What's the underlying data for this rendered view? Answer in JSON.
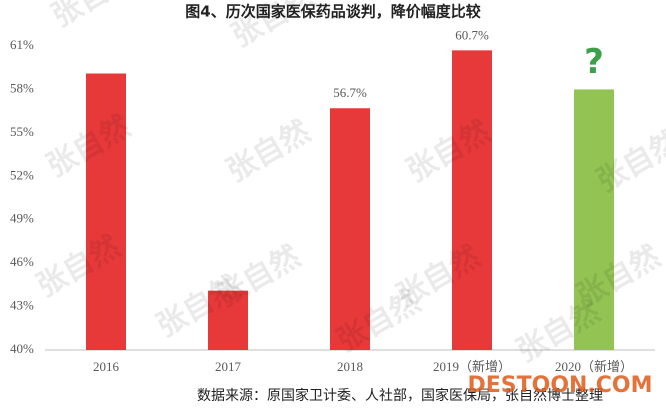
{
  "chart_data": {
    "type": "bar",
    "title": "图4、历次国家医保药品谈判，降价幅度比较",
    "categories": [
      "2016",
      "2017",
      "2018",
      "2019（新增）",
      "2020（新增）"
    ],
    "values": [
      59.1,
      44.1,
      56.7,
      60.7,
      58.0
    ],
    "value_labels": [
      null,
      null,
      "56.7%",
      "60.7%",
      null
    ],
    "colors": [
      "#e8393a",
      "#e8393a",
      "#e8393a",
      "#e8393a",
      "#92c353"
    ],
    "annotation": "?",
    "annotation_color": "#3aa14a",
    "ylim": [
      40,
      61
    ],
    "yticks": [
      {
        "value": 40,
        "label": "40%"
      },
      {
        "value": 43,
        "label": "43%"
      },
      {
        "value": 46,
        "label": "46%"
      },
      {
        "value": 49,
        "label": "49%"
      },
      {
        "value": 52,
        "label": "52%"
      },
      {
        "value": 55,
        "label": "55%"
      },
      {
        "value": 58,
        "label": "58%"
      },
      {
        "value": 61,
        "label": "61%"
      }
    ],
    "grid": false,
    "source": "数据来源：原国家卫计委、人社部，国家医保局，张自然博士整理",
    "watermark": "张自然",
    "site_logo": "DESTOON.COM"
  }
}
